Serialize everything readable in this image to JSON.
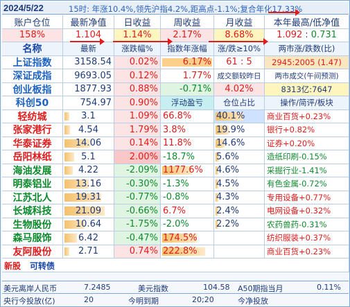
{
  "header": {
    "date": "2024/5/22",
    "note": "15时: 年涨10.4%,领先沪指4.2%,距高点-1.1%;复合年化17.33%"
  },
  "summary": {
    "labels": [
      "账户仓位",
      "最新净值",
      "日收益",
      "周收益",
      "月收益",
      "本年最高/低净值"
    ],
    "values": [
      "158%",
      "1.104",
      "1.14%",
      "2.17%",
      "8.68%",
      "1.092",
      ":",
      "0.731"
    ]
  },
  "col_headers": [
    "名称",
    "最新",
    "涨跌幅%",
    "指数年涨幅",
    "涨/跌≥10%",
    "两市涨/跌数(比)"
  ],
  "indices": [
    {
      "name": "上证指数",
      "last": "3158.54",
      "chg": "0.02%",
      "ytd": "6.17%",
      "up_down": "61 : 5",
      "ratio": "2945:2005 (1.47)"
    },
    {
      "name": "深证成指",
      "last": "9693.05",
      "chg": "0.12%",
      "ytd": "1.77%",
      "up_down": "成交额较昨日",
      "ratio": "两市成交(午间预测)"
    },
    {
      "name": "创业板指",
      "last": "1877.93",
      "chg": "0.88%",
      "ytd": "-0.71%",
      "up_down": "4.02%",
      "ratio": "8313亿:7647"
    },
    {
      "name": "科创50",
      "last": "754.97",
      "chg": "0.90%",
      "ytd": "浮动盈亏",
      "up_down": "仓位占比",
      "ratio": "操作/简评/板块"
    }
  ],
  "stocks": [
    {
      "name": "轻纺城",
      "last": "3.1",
      "chg": "1.09%",
      "pnl": "66.8%",
      "weight": "40.1%",
      "note": "商业百货+0.23%",
      "bar": 0.1,
      "pnl_bar": 0,
      "w_bar": 0.6
    },
    {
      "name": "张家港行",
      "last": "4.54",
      "chg": "1.79%",
      "pnl": "3.8%",
      "weight": "19.9%",
      "note": "银行+0.82%",
      "bar": 0.12,
      "pnl_bar": 0,
      "w_bar": 0.28
    },
    {
      "name": "华泰证券",
      "last": "14.06",
      "chg": "0.14%",
      "pnl": "11.8%",
      "weight": "14.6%",
      "note": "证券+0.20%",
      "bar": 0.55,
      "pnl_bar": 0,
      "w_bar": 0.2
    },
    {
      "name": "岳阳林纸",
      "last": "5.1",
      "chg": "2.00%",
      "pnl": "-18.7%",
      "weight": "5.6%",
      "note": "造纸印刷-0.15%",
      "bar": 0.2,
      "pnl_bar": 0,
      "w_bar": 0.07
    },
    {
      "name": "海油发展",
      "last": "4.22",
      "chg": "-2.09%",
      "pnl": "1177.6%",
      "weight": "4.6%",
      "note": "采掘行业-1.41%",
      "bar": 0.18,
      "pnl_bar": 0.6,
      "w_bar": 0.06
    },
    {
      "name": "明泰铝业",
      "last": "13.16",
      "chg": "-0.30%",
      "pnl": "-1.3%",
      "weight": "4.5%",
      "note": "有色金属-0.72%",
      "bar": 0.52,
      "pnl_bar": 0,
      "w_bar": 0.06
    },
    {
      "name": "江苏北人",
      "last": "19.31",
      "chg": "-0.77%",
      "pnl": "-0.8%",
      "weight": "4.3%",
      "note": "专用设备+0.77%",
      "bar": 0.78,
      "pnl_bar": 0,
      "w_bar": 0.06
    },
    {
      "name": "长城科技",
      "last": "21.09",
      "chg": "-0.66%",
      "pnl": "6.7%",
      "weight": "2.4%",
      "note": "电网设备+0.32%",
      "bar": 0.85,
      "pnl_bar": 0,
      "w_bar": 0.03
    },
    {
      "name": "生物股份",
      "last": "10.64",
      "chg": "-1.75%",
      "pnl": "-2.0%",
      "weight": "2.2%",
      "note": "农药兽药-0.31%",
      "bar": 0.42,
      "pnl_bar": 0,
      "w_bar": 0.03
    },
    {
      "name": "森马服饰",
      "last": "6.42",
      "chg": "-0.47%",
      "pnl": "174.5%",
      "weight": "",
      "note": "纺织服装+0.37%",
      "bar": 0.26,
      "pnl_bar": 0.7,
      "w_bar": 0
    },
    {
      "name": "友阿股份",
      "last": "2.71",
      "chg": "0.74%",
      "pnl": "222.8%",
      "weight": "",
      "note": "商业百货+0.23%",
      "bar": 0.1,
      "pnl_bar": 0.88,
      "w_bar": 0
    }
  ],
  "new_stock_row": {
    "a": "新股",
    "b": "可转债"
  },
  "footer": {
    "fx_label": "美元离岸人民币",
    "fx_value": "7.2485",
    "usd_label": "美元指数",
    "usd_value": "104.58",
    "a50_label": "A50期指当月",
    "a50_value": "0.11%",
    "repo_label": "央行今投放(亿)",
    "repo_value": "20",
    "expire_label": "今明到期",
    "expire_value": "20;20",
    "net_label": "今净投放"
  },
  "colors": {
    "red": "#e01c1c",
    "green": "#0f8a2e",
    "blue": "#1846a8",
    "pink_cell": "#fde4e4",
    "green_cell": "#dff5e1",
    "yellow_cell": "#fff6bf",
    "bar": "#f5c06a",
    "teal_cell": "#c7eef0"
  }
}
